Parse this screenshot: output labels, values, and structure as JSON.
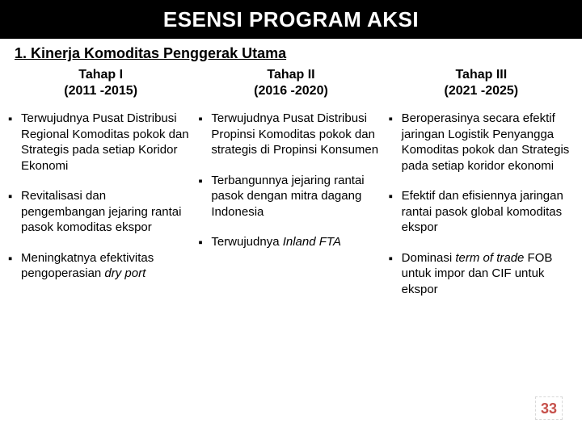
{
  "title": "ESENSI PROGRAM AKSI",
  "subhead": "1. Kinerja Komoditas Penggerak Utama",
  "columns": [
    {
      "header_line1": "Tahap I",
      "header_line2": "(2011 -2015)",
      "items": [
        "Terwujudnya Pusat Distribusi Regional Komoditas pokok dan Strategis  pada setiap Koridor Ekonomi",
        "Revitalisasi dan pengembangan jejaring rantai pasok komoditas ekspor"
      ],
      "items_extra_html": [
        "Meningkatnya efektivitas pengoperasian <span class=\"italic\">dry port</span>"
      ]
    },
    {
      "header_line1": "Tahap II",
      "header_line2": "(2016 -2020)",
      "items": [
        "Terwujudnya Pusat Distribusi Propinsi Komoditas pokok dan strategis  di Propinsi Konsumen",
        "Terbangunnya jejaring rantai pasok dengan mitra dagang Indonesia"
      ],
      "items_extra_html": [
        "Terwujudnya <span class=\"italic\">Inland FTA</span>"
      ]
    },
    {
      "header_line1": "Tahap III",
      "header_line2": "(2021 -2025)",
      "items": [
        "Beroperasinya secara efektif  jaringan Logistik Penyangga Komoditas pokok dan Strategis pada setiap koridor ekonomi",
        "Efektif dan efisiennya jaringan rantai pasok global komoditas ekspor"
      ],
      "items_extra_html": [
        "Dominasi <span class=\"italic\">term of trade</span> FOB untuk impor dan CIF untuk ekspor"
      ]
    }
  ],
  "page_number": "33",
  "colors": {
    "title_bg": "#000000",
    "title_fg": "#ffffff",
    "pagenum": "#c6504b"
  }
}
